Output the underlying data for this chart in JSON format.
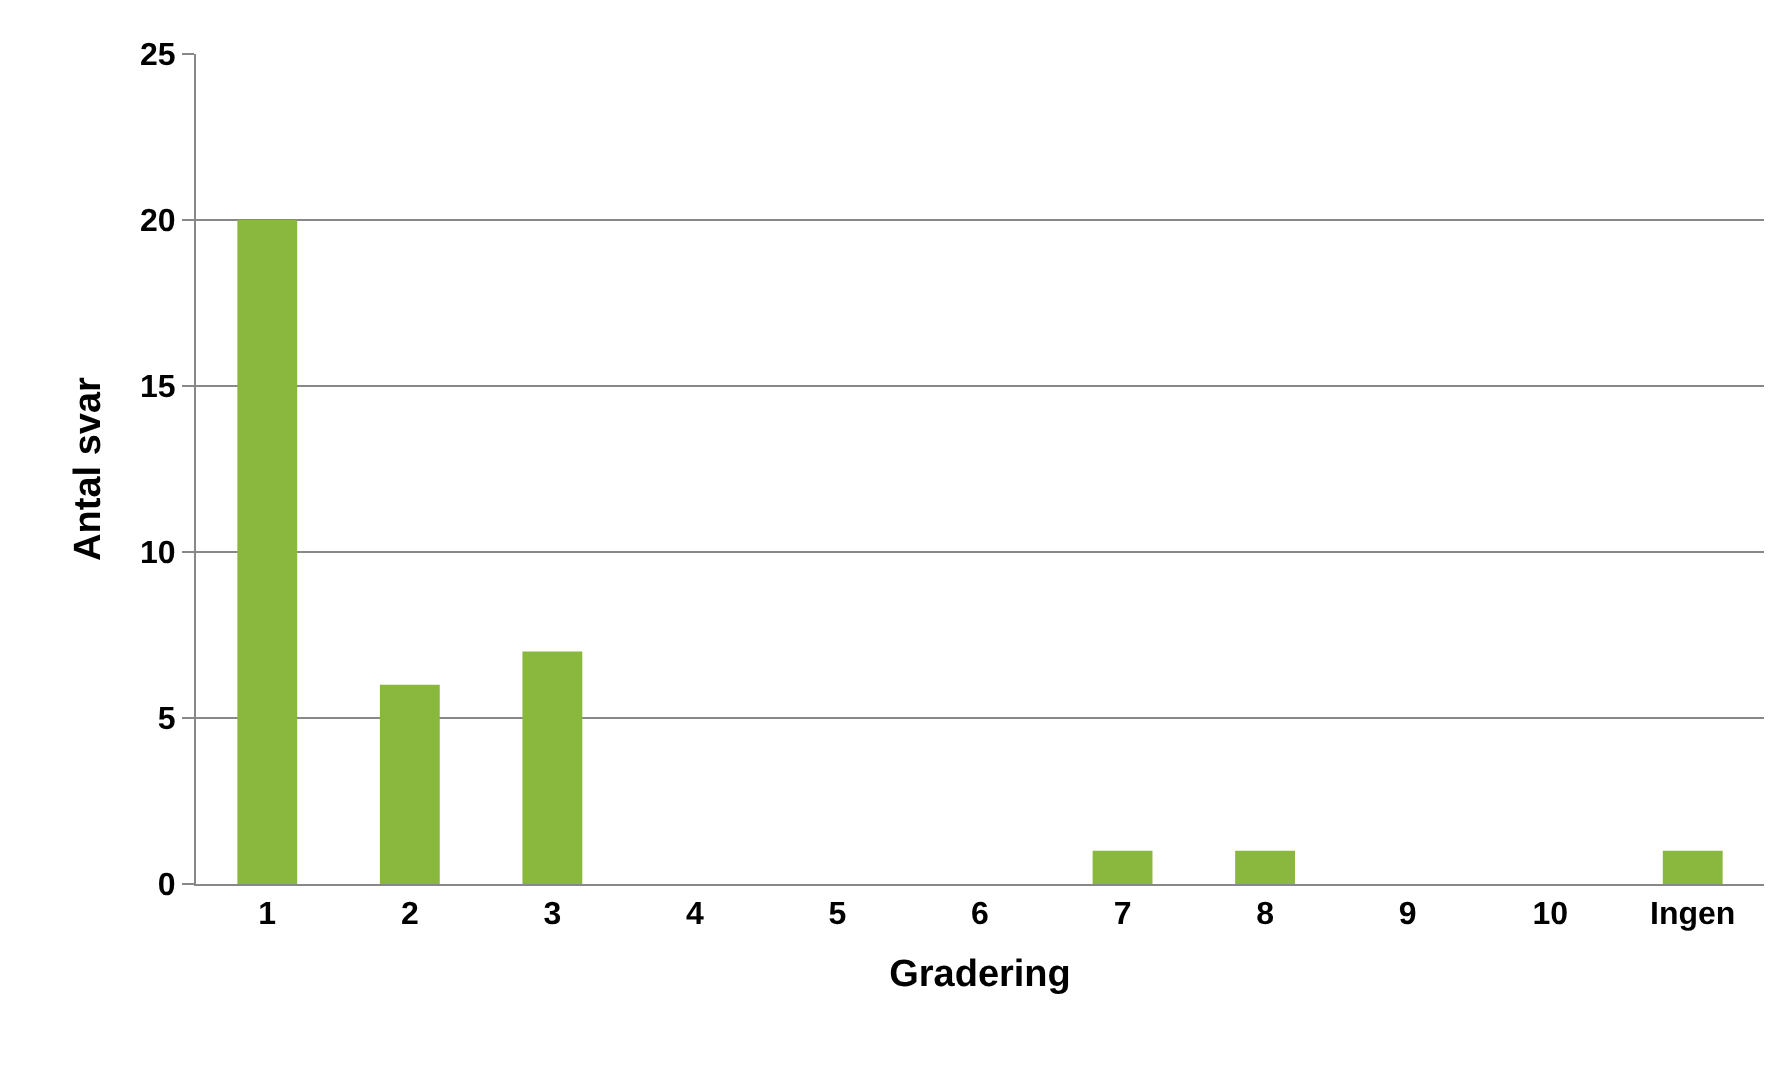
{
  "chart_data": {
    "type": "bar",
    "xlabel": "Gradering",
    "ylabel": "Antal svar",
    "categories": [
      "1",
      "2",
      "3",
      "4",
      "5",
      "6",
      "7",
      "8",
      "9",
      "10",
      "Ingen"
    ],
    "values": [
      20,
      6,
      7,
      0,
      0,
      0,
      1,
      1,
      0,
      0,
      1
    ],
    "color": "#8ab83e",
    "ylim": [
      0,
      25
    ],
    "yticks": [
      0,
      5,
      10,
      15,
      20,
      25
    ],
    "grid": "y",
    "legend": false
  }
}
